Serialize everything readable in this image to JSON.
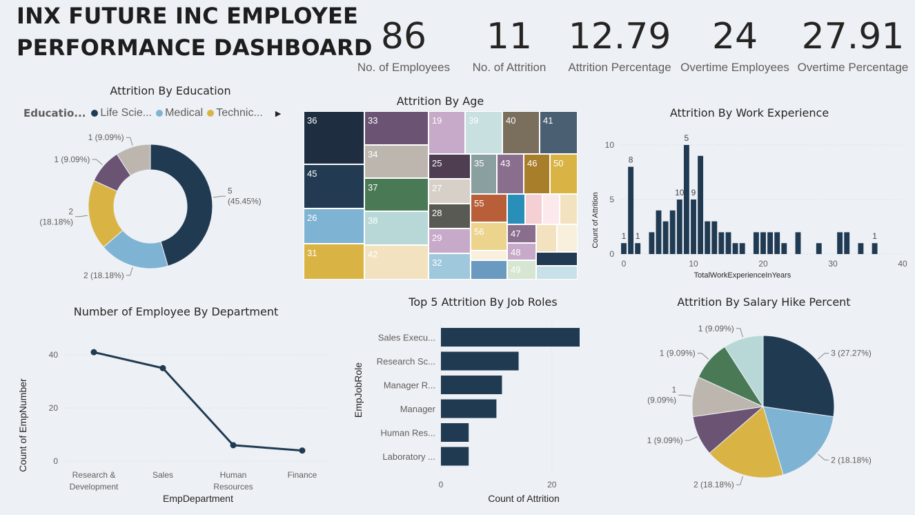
{
  "dashboard": {
    "title_line1": "INX FUTURE INC EMPLOYEE",
    "title_line2": "PERFORMANCE DASHBOARD"
  },
  "kpis": [
    {
      "value": "86",
      "label": "No. of Employees"
    },
    {
      "value": "11",
      "label": "No. of Attrition"
    },
    {
      "value": "12.79",
      "label": "Attrition Percentage"
    },
    {
      "value": "24",
      "label": "Overtime Employees"
    },
    {
      "value": "27.91",
      "label": "Overtime Percentage"
    }
  ],
  "legend": {
    "title": "Educatio...",
    "items": [
      {
        "label": "Life Scie...",
        "color": "#203a52"
      },
      {
        "label": "Medical",
        "color": "#7fb3d3"
      },
      {
        "label": "Technic...",
        "color": "#d9b445"
      }
    ],
    "more_icon": "chevron-right-icon"
  },
  "colors": {
    "navy": "#203a52",
    "blue": "#7fb3d3",
    "gold": "#d9b445",
    "purple": "#6b5473",
    "gray": "#bcb6ae",
    "green": "#4a7a55",
    "lightcyan": "#b8d8d8"
  },
  "chart_data": [
    {
      "id": "education",
      "type": "pie",
      "title": "Attrition By Education",
      "categories": [
        "Life Sciences",
        "Medical",
        "Technical Degree",
        "",
        ""
      ],
      "values": [
        5,
        2,
        2,
        1,
        1
      ],
      "colors": [
        "#203a52",
        "#7fb3d3",
        "#d9b445",
        "#6b5473",
        "#bcb6ae"
      ],
      "labels": [
        "5|(45.45%)",
        "2 (18.18%)",
        "2|(18.18%)",
        "1 (9.09%)",
        "1 (9.09%)"
      ],
      "donut": true
    },
    {
      "id": "age",
      "type": "heatmap",
      "title": "Attrition By Age",
      "cells": [
        {
          "label": "36",
          "color": "#1e2d40"
        },
        {
          "label": "45",
          "color": "#223a52"
        },
        {
          "label": "26",
          "color": "#7fb3d3"
        },
        {
          "label": "31",
          "color": "#d9b445"
        },
        {
          "label": "33",
          "color": "#6b5473"
        },
        {
          "label": "34",
          "color": "#bcb6ae"
        },
        {
          "label": "37",
          "color": "#4a7a55"
        },
        {
          "label": "38",
          "color": "#b8d8d8"
        },
        {
          "label": "42",
          "color": "#f3e2c0"
        },
        {
          "label": "19",
          "color": "#c7aac9"
        },
        {
          "label": "39",
          "color": "#c8e0e0"
        },
        {
          "label": "40",
          "color": "#7a6e5c"
        },
        {
          "label": "41",
          "color": "#4a6072"
        },
        {
          "label": "25",
          "color": "#4f3e52"
        },
        {
          "label": "27",
          "color": "#d6d0c8"
        },
        {
          "label": "28",
          "color": "#5a5a55"
        },
        {
          "label": "29",
          "color": "#c7aac9"
        },
        {
          "label": "32",
          "color": "#a0c8dc"
        },
        {
          "label": "35",
          "color": "#8aa0a0"
        },
        {
          "label": "43",
          "color": "#8a6e8e"
        },
        {
          "label": "46",
          "color": "#a87e2a"
        },
        {
          "label": "50",
          "color": "#d9b445"
        },
        {
          "label": "55",
          "color": "#b85f3a"
        },
        {
          "label": "56",
          "color": "#ecd48c"
        },
        {
          "label": "47",
          "color": "#8a6e8e"
        },
        {
          "label": "48",
          "color": "#c7aac9"
        },
        {
          "label": "49",
          "color": "#d6e6d2"
        }
      ]
    },
    {
      "id": "experience",
      "type": "bar",
      "title": "Attrition By Work Experience",
      "xlabel": "TotalWorkExperienceInYears",
      "ylabel": "Count of Attrition",
      "xlim": [
        0,
        40
      ],
      "ylim": [
        0,
        10
      ],
      "xticks": [
        0,
        10,
        20,
        30,
        40
      ],
      "yticks": [
        0,
        5,
        10
      ],
      "x": [
        0,
        1,
        2,
        4,
        5,
        6,
        7,
        8,
        9,
        10,
        11,
        12,
        13,
        14,
        15,
        16,
        17,
        19,
        20,
        21,
        22,
        23,
        25,
        28,
        31,
        32,
        34,
        36
      ],
      "values": [
        1,
        8,
        1,
        2,
        4,
        3,
        4,
        5,
        10,
        5,
        9,
        3,
        3,
        2,
        2,
        1,
        1,
        2,
        2,
        2,
        2,
        1,
        2,
        1,
        2,
        2,
        1,
        1
      ],
      "data_labels": {
        "0": "1",
        "1": "8",
        "2": "1",
        "8": "10",
        "10": "9",
        "9": "5",
        "36": "1"
      }
    },
    {
      "id": "department",
      "type": "line",
      "title": "Number of Employee By Department",
      "xlabel": "EmpDepartment",
      "ylabel": "Count of EmpNumber",
      "categories": [
        "Research & Development",
        "Sales",
        "Human Resources",
        "Finance"
      ],
      "values": [
        41,
        35,
        6,
        4
      ],
      "ylim": [
        0,
        40
      ],
      "yticks": [
        0,
        20,
        40
      ]
    },
    {
      "id": "jobroles",
      "type": "bar",
      "orientation": "horizontal",
      "title": "Top 5 Attrition By Job Roles",
      "xlabel": "Count of Attrition",
      "ylabel": "EmpJobRole",
      "categories": [
        "Sales Execu...",
        "Research Sc...",
        "Manager R...",
        "Manager",
        "Human Res...",
        "Laboratory ..."
      ],
      "values": [
        25,
        14,
        11,
        10,
        5,
        5
      ],
      "xticks": [
        0,
        20
      ]
    },
    {
      "id": "salaryhike",
      "type": "pie",
      "title": "Attrition By Salary Hike Percent",
      "values": [
        3,
        2,
        2,
        1,
        1,
        1,
        1
      ],
      "colors": [
        "#203a52",
        "#7fb3d3",
        "#d9b445",
        "#6b5473",
        "#bcb6ae",
        "#4a7a55",
        "#b8d8d8"
      ],
      "labels": [
        "3 (27.27%)",
        "2 (18.18%)",
        "2 (18.18%)",
        "1 (9.09%)",
        "1|(9.09%)",
        "1 (9.09%)",
        "1 (9.09%)"
      ]
    }
  ]
}
